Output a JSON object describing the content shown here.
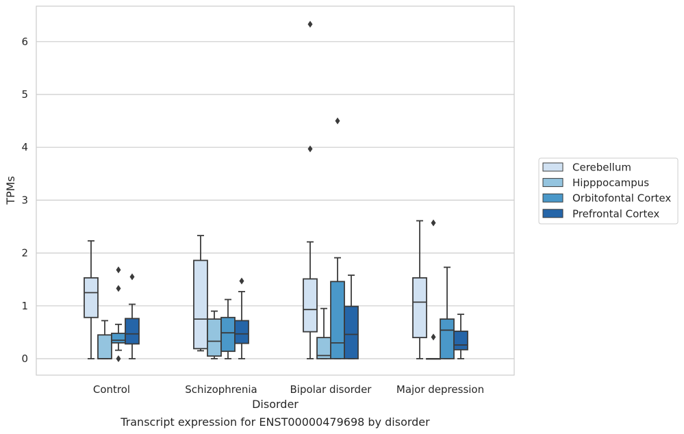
{
  "chart_data": {
    "type": "box",
    "caption": "Transcript expression for ENST00000479698 by disorder",
    "xlabel": "Disorder",
    "ylabel": "TPMs",
    "ylim": [
      -0.3,
      6.65
    ],
    "yticks": [
      0,
      1,
      2,
      3,
      4,
      5,
      6
    ],
    "grid": "horizontal",
    "legend_position": "right",
    "categories": [
      "Control",
      "Schizophrenia",
      "Bipolar disorder",
      "Major depression"
    ],
    "series": [
      {
        "name": "Cerebellum",
        "color": "#d0e1f2",
        "boxes": [
          {
            "whislo": 0,
            "q1": 0.78,
            "med": 1.25,
            "q3": 1.53,
            "whishi": 2.23,
            "fliers": []
          },
          {
            "whislo": 0.15,
            "q1": 0.19,
            "med": 0.75,
            "q3": 1.86,
            "whishi": 2.33,
            "fliers": []
          },
          {
            "whislo": 0,
            "q1": 0.51,
            "med": 0.93,
            "q3": 1.51,
            "whishi": 2.21,
            "fliers": [
              3.97,
              6.33
            ]
          },
          {
            "whislo": 0,
            "q1": 0.4,
            "med": 1.07,
            "q3": 1.53,
            "whishi": 2.61,
            "fliers": []
          }
        ]
      },
      {
        "name": "Hipppocampus",
        "color": "#94c4df",
        "boxes": [
          {
            "whislo": 0,
            "q1": 0,
            "med": 0,
            "q3": 0.45,
            "whishi": 0.72,
            "fliers": []
          },
          {
            "whislo": 0,
            "q1": 0.05,
            "med": 0.33,
            "q3": 0.75,
            "whishi": 0.9,
            "fliers": []
          },
          {
            "whislo": 0,
            "q1": 0,
            "med": 0.06,
            "q3": 0.4,
            "whishi": 0.95,
            "fliers": []
          },
          {
            "whislo": 0,
            "q1": 0,
            "med": 0,
            "q3": 0,
            "whishi": 0,
            "fliers": [
              0.41,
              2.57
            ]
          }
        ]
      },
      {
        "name": "Orbitofontal Cortex",
        "color": "#4a98c9",
        "boxes": [
          {
            "whislo": 0.16,
            "q1": 0.3,
            "med": 0.35,
            "q3": 0.48,
            "whishi": 0.65,
            "fliers": [
              0,
              1.33,
              1.68
            ]
          },
          {
            "whislo": 0,
            "q1": 0.14,
            "med": 0.49,
            "q3": 0.78,
            "whishi": 1.12,
            "fliers": []
          },
          {
            "whislo": 0,
            "q1": 0,
            "med": 0.3,
            "q3": 1.46,
            "whishi": 1.91,
            "fliers": [
              4.5
            ]
          },
          {
            "whislo": 0,
            "q1": 0,
            "med": 0.54,
            "q3": 0.75,
            "whishi": 1.73,
            "fliers": []
          }
        ]
      },
      {
        "name": "Prefrontal Cortex",
        "color": "#2565a8",
        "boxes": [
          {
            "whislo": 0,
            "q1": 0.28,
            "med": 0.47,
            "q3": 0.76,
            "whishi": 1.03,
            "fliers": [
              1.55
            ]
          },
          {
            "whislo": 0,
            "q1": 0.29,
            "med": 0.47,
            "q3": 0.72,
            "whishi": 1.27,
            "fliers": [
              1.47
            ]
          },
          {
            "whislo": 0,
            "q1": 0,
            "med": 0.46,
            "q3": 0.99,
            "whishi": 1.58,
            "fliers": []
          },
          {
            "whislo": 0,
            "q1": 0.17,
            "med": 0.26,
            "q3": 0.52,
            "whishi": 0.84,
            "fliers": []
          }
        ]
      }
    ]
  }
}
